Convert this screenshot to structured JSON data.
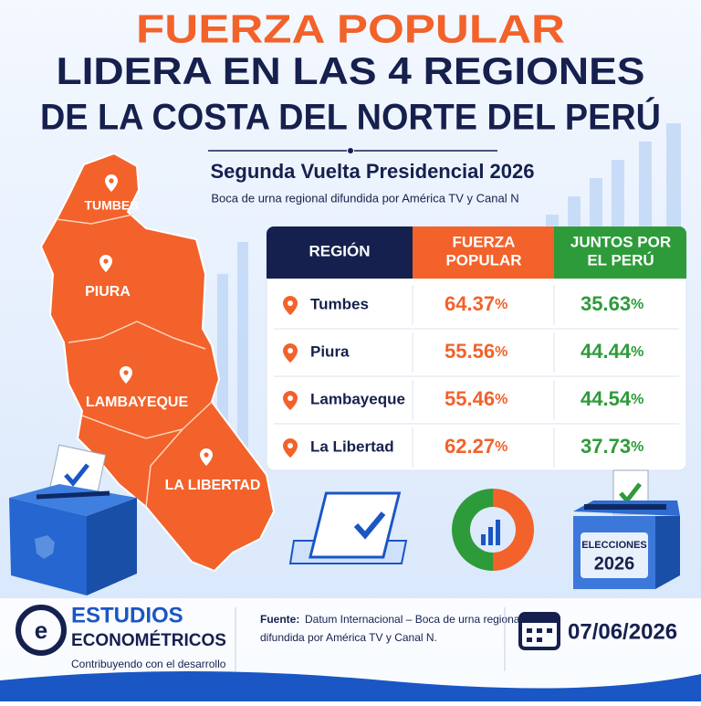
{
  "header": {
    "title_line1": "FUERZA POPULAR",
    "title_line2": "LIDERA EN LAS 4 REGIONES",
    "title_line3": "DE LA COSTA DEL NORTE DEL PERÚ",
    "subtitle": "Segunda Vuelta Presidencial 2026",
    "note": "Boca de urna regional difundida por América TV y Canal N"
  },
  "map": {
    "labels": [
      "TUMBES",
      "PIURA",
      "LAMBAYEQUE",
      "LA LIBERTAD"
    ]
  },
  "table": {
    "headers": [
      [
        "REGIÓN"
      ],
      [
        "FUERZA",
        "POPULAR"
      ],
      [
        "JUNTOS POR",
        "EL PERÚ"
      ]
    ],
    "rows": [
      {
        "region": "Tumbes",
        "fuerza": {
          "number": 64.37,
          "unit": "%"
        },
        "juntos": {
          "number": 35.63,
          "unit": "%"
        }
      },
      {
        "region": "Piura",
        "fuerza": {
          "number": 55.56,
          "unit": "%"
        },
        "juntos": {
          "number": 44.44,
          "unit": "%"
        }
      },
      {
        "region": "Lambayeque",
        "fuerza": {
          "number": 55.46,
          "unit": "%"
        },
        "juntos": {
          "number": 44.54,
          "unit": "%"
        }
      },
      {
        "region": "La Libertad",
        "fuerza": {
          "number": 62.27,
          "unit": "%"
        },
        "juntos": {
          "number": 37.73,
          "unit": "%"
        }
      }
    ]
  },
  "ballot_box": [
    "ELECCIONES",
    "2026"
  ],
  "footer": {
    "brand_line1": "ESTUDIOS",
    "brand_line2": "ECONOMÉTRICOS",
    "tagline": "Contribuyendo con el desarrollo",
    "source_label": "Fuente:",
    "source_line1": "Datum Internacional – Boca de urna regional",
    "source_line2": "difundida por América TV y Canal N.",
    "date": "07/06/2026"
  }
}
